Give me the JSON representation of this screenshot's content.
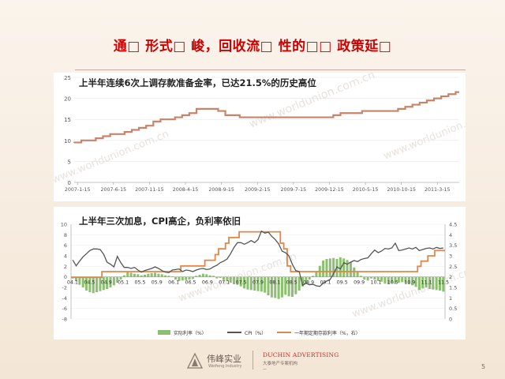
{
  "slide": {
    "title": "通□ 形式□ 峻，回收流□ 性的□□ 政策延□",
    "page_number": "5",
    "colors": {
      "title": "#cc0000",
      "rule": "#c9a9a0"
    }
  },
  "footer": {
    "logo_cn": "伟峰实业",
    "logo_en": "Weifeng Industry",
    "agency_en": "DUCHIN  ADVERTISING",
    "agency_cn": "大泰地产专案机构",
    "agency_dash": "—"
  },
  "chart_data": [
    {
      "type": "line",
      "title": "上半年连续6次上调存款准备金率，已达21.5%的历史高位",
      "watermark": "www.worldunion.com.cn",
      "ylim": [
        0,
        25
      ],
      "yticks": [
        0,
        5,
        10,
        15,
        20,
        25
      ],
      "xtick_labels": [
        "2007-1-15",
        "2007-6-15",
        "2007-11-15",
        "2008-4-15",
        "2008-9-15",
        "2009-2-15",
        "2009-7-15",
        "2009-12-15",
        "2010-5-15",
        "2010-10-15",
        "2011-3-15"
      ],
      "grid": true,
      "color": "#c8846a",
      "series": [
        {
          "x": [
            "2007-01",
            "2007-02",
            "2007-04",
            "2007-05",
            "2007-06",
            "2007-08",
            "2007-09",
            "2007-10",
            "2007-11",
            "2007-12",
            "2008-01",
            "2008-03",
            "2008-04",
            "2008-05",
            "2008-06",
            "2008-09",
            "2008-10",
            "2008-12",
            "2009-01",
            "2009-06",
            "2009-12",
            "2010-01",
            "2010-02",
            "2010-05",
            "2010-10",
            "2010-11",
            "2010-12",
            "2011-01",
            "2011-02",
            "2011-03",
            "2011-04",
            "2011-05",
            "2011-06"
          ],
          "values": [
            9.5,
            10.0,
            10.5,
            11.0,
            11.5,
            12.0,
            12.5,
            13.0,
            13.5,
            14.5,
            15.0,
            15.5,
            16.0,
            16.5,
            17.5,
            17.0,
            16.0,
            15.5,
            15.5,
            15.5,
            15.5,
            16.0,
            16.5,
            17.0,
            17.5,
            18.0,
            18.5,
            19.0,
            19.5,
            20.0,
            20.5,
            21.0,
            21.5
          ]
        }
      ]
    },
    {
      "type": "bar",
      "title": "上半年三次加息，CPI高企，负利率依旧",
      "watermark": "www.worldunion.com.cn",
      "ylim_left": [
        -8,
        10
      ],
      "yticks_left": [
        -8,
        -6,
        -4,
        -2,
        0,
        2,
        4,
        6,
        8,
        10
      ],
      "ylim_right": [
        0,
        4.5
      ],
      "yticks_right": [
        0,
        0.5,
        1,
        1.5,
        2,
        2.5,
        3,
        3.5,
        4,
        4.5
      ],
      "x_labels": [
        "04.1",
        "04.5",
        "04.9",
        "05.1",
        "05.5",
        "05.9",
        "06.1",
        "06.5",
        "06.9",
        "07.1",
        "07.5",
        "07.9",
        "08.1",
        "08.5",
        "08.9",
        "09.1",
        "09.5",
        "09.9",
        "10.1",
        "10.5",
        "10.9",
        "11.1",
        "11.5"
      ],
      "legend": [
        "实际利率（%）",
        "CPI（%）",
        "一年期定期存款利率（%，右）"
      ],
      "legend_position": "bottom",
      "colors": {
        "real_rate": "#8cc070",
        "cpi": "#555555",
        "deposit": "#e0874a"
      },
      "series": [
        {
          "name": "实际利率（%）",
          "axis": "left",
          "type": "bar",
          "values": [
            -0.3,
            -0.8,
            -1.5,
            -2.0,
            -2.6,
            -2.9,
            -3.1,
            -2.9,
            -2.7,
            -2.5,
            -2.3,
            -2.0,
            -1.6,
            -1.1,
            -0.5,
            0.3,
            0.9,
            0.8,
            0.6,
            0.5,
            0.3,
            0.4,
            0.6,
            0.7,
            0.8,
            0.6,
            0.5,
            0.3,
            0.2,
            0.1,
            -0.5,
            -0.8,
            -0.7,
            -0.6,
            -0.5,
            -0.4,
            0.2,
            0.4,
            0.6,
            0.5,
            0.3,
            0.2,
            -0.3,
            -0.2,
            -0.6,
            -0.8,
            -1.1,
            -1.4,
            -1.5,
            -1.8,
            -2.2,
            -2.4,
            -2.5,
            -2.6,
            -2.7,
            -2.8,
            -3.0,
            -3.5,
            -3.9,
            -4.0,
            -4.2,
            -3.9,
            -3.4,
            -3.7,
            -3.8,
            -3.3,
            -2.6,
            -1.8,
            -1.2,
            -0.5,
            0.2,
            1.0,
            2.1,
            3.1,
            3.4,
            3.5,
            3.6,
            3.4,
            3.7,
            3.5,
            3.2,
            2.8,
            1.8,
            1.0,
            0.2,
            -0.5,
            -0.7,
            -0.3,
            -0.5,
            -0.8,
            -0.9,
            -1.3,
            -1.4,
            -1.2,
            -1.3,
            -1.1,
            -1.0,
            -1.2,
            -1.4,
            -1.6,
            -1.9,
            -2.5,
            -2.2,
            -2.0,
            -2.3,
            -2.4,
            -2.5,
            -2.6,
            -2.8
          ]
        },
        {
          "name": "CPI（%）",
          "axis": "left",
          "type": "line",
          "values": [
            3.2,
            2.1,
            3.0,
            3.8,
            4.4,
            5.0,
            5.3,
            5.3,
            5.2,
            4.3,
            2.8,
            2.4,
            1.9,
            3.9,
            2.7,
            1.8,
            1.8,
            1.6,
            1.8,
            1.3,
            0.9,
            1.2,
            1.4,
            1.6,
            1.9,
            1.6,
            1.2,
            0.9,
            0.8,
            1.3,
            1.4,
            1.5,
            1.0,
            1.3,
            1.2,
            1.0,
            1.3,
            1.5,
            1.6,
            1.4,
            1.5,
            1.9,
            2.2,
            2.7,
            3.0,
            3.4,
            4.4,
            5.6,
            6.5,
            6.5,
            6.2,
            6.5,
            6.9,
            6.5,
            7.1,
            8.7,
            8.3,
            8.5,
            7.7,
            7.1,
            6.3,
            4.9,
            4.6,
            4.0,
            2.4,
            1.2,
            1.0,
            -1.6,
            -1.2,
            -1.5,
            -1.4,
            -1.7,
            -1.8,
            -1.2,
            -0.8,
            -0.5,
            0.6,
            1.9,
            1.5,
            2.7,
            2.4,
            2.8,
            3.1,
            2.9,
            3.3,
            3.5,
            3.6,
            4.4,
            5.1,
            4.6,
            4.9,
            5.4,
            5.3,
            5.5,
            6.4,
            5.0,
            5.1,
            5.3,
            5.5,
            5.3,
            5.6,
            5.0,
            5.2,
            5.4,
            5.5,
            5.3,
            5.6,
            5.4,
            5.5
          ]
        },
        {
          "name": "一年期定期存款利率（%，右）",
          "axis": "right",
          "type": "step",
          "values": [
            1.98,
            1.98,
            1.98,
            1.98,
            1.98,
            1.98,
            1.98,
            1.98,
            1.98,
            2.25,
            2.25,
            2.25,
            2.25,
            2.25,
            2.25,
            2.25,
            2.25,
            2.25,
            2.25,
            2.25,
            2.25,
            2.25,
            2.25,
            2.25,
            2.25,
            2.25,
            2.25,
            2.25,
            2.25,
            2.25,
            2.25,
            2.25,
            2.52,
            2.52,
            2.52,
            2.52,
            2.52,
            2.52,
            2.52,
            2.79,
            2.79,
            2.79,
            3.06,
            3.33,
            3.33,
            3.6,
            3.87,
            3.87,
            3.87,
            4.14,
            4.14,
            4.14,
            4.14,
            4.14,
            4.14,
            4.14,
            4.14,
            4.14,
            4.14,
            4.14,
            4.14,
            3.6,
            3.33,
            2.52,
            2.25,
            2.25,
            2.25,
            2.25,
            2.25,
            2.25,
            2.25,
            2.25,
            2.25,
            2.25,
            2.25,
            2.25,
            2.25,
            2.25,
            2.25,
            2.25,
            2.25,
            2.25,
            2.25,
            2.25,
            2.25,
            2.25,
            2.25,
            2.25,
            2.25,
            2.25,
            2.25,
            2.25,
            2.25,
            2.25,
            2.25,
            2.25,
            2.25,
            2.25,
            2.25,
            2.25,
            2.25,
            2.5,
            2.75,
            2.75,
            3.0,
            3.0,
            3.25,
            3.25,
            3.25
          ]
        }
      ]
    }
  ]
}
